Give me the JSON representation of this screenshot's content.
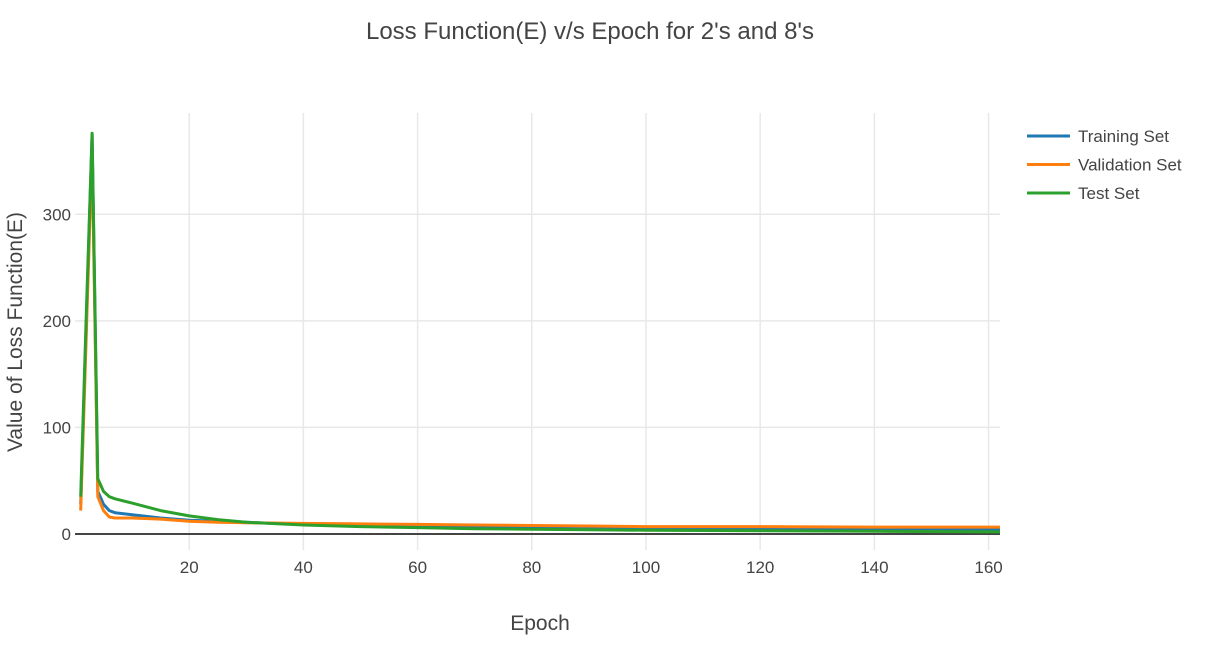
{
  "chart_data": {
    "type": "line",
    "title": "Loss Function(E) v/s Epoch for 2's and 8's",
    "xlabel": "Epoch",
    "ylabel": "Value of Loss Function(E)",
    "xlim": [
      0,
      162
    ],
    "ylim": [
      -15,
      395
    ],
    "x_ticks": [
      20,
      40,
      60,
      80,
      100,
      120,
      140,
      160
    ],
    "y_ticks": [
      0,
      100,
      200,
      300
    ],
    "x_tick_labels": [
      "20",
      "40",
      "60",
      "80",
      "100",
      "120",
      "140",
      "160"
    ],
    "y_tick_labels": [
      "0",
      "100",
      "200",
      "300"
    ],
    "grid": true,
    "legend_position": "top-right",
    "series": [
      {
        "name": "Training Set",
        "color": "#1f77b4",
        "x": [
          1,
          2,
          3,
          4,
          5,
          6,
          7,
          10,
          15,
          20,
          25,
          30,
          40,
          50,
          60,
          70,
          80,
          90,
          100,
          120,
          140,
          162
        ],
        "y": [
          28,
          200,
          375,
          40,
          28,
          22,
          20,
          18,
          15,
          13,
          12,
          11,
          9,
          7.5,
          6.5,
          6,
          5.5,
          5,
          5,
          4.5,
          4,
          4
        ]
      },
      {
        "name": "Validation Set",
        "color": "#ff7f0e",
        "x": [
          1,
          2,
          3,
          4,
          5,
          6,
          7,
          10,
          15,
          20,
          25,
          30,
          40,
          50,
          60,
          70,
          80,
          90,
          100,
          120,
          140,
          162
        ],
        "y": [
          22,
          190,
          360,
          35,
          22,
          16,
          15,
          15,
          14,
          12,
          11,
          10.5,
          10,
          9.5,
          9,
          8.5,
          8,
          7.5,
          7,
          7,
          6.5,
          6.5
        ]
      },
      {
        "name": "Test Set",
        "color": "#2ca02c",
        "x": [
          1,
          2,
          3,
          4,
          5,
          6,
          7,
          10,
          15,
          20,
          25,
          30,
          40,
          50,
          60,
          70,
          80,
          90,
          100,
          120,
          140,
          162
        ],
        "y": [
          35,
          210,
          376,
          52,
          40,
          35,
          33,
          29,
          22,
          17,
          13.5,
          11,
          8.5,
          7,
          6,
          5,
          4.5,
          4,
          3.5,
          3,
          2.5,
          2
        ]
      }
    ]
  }
}
